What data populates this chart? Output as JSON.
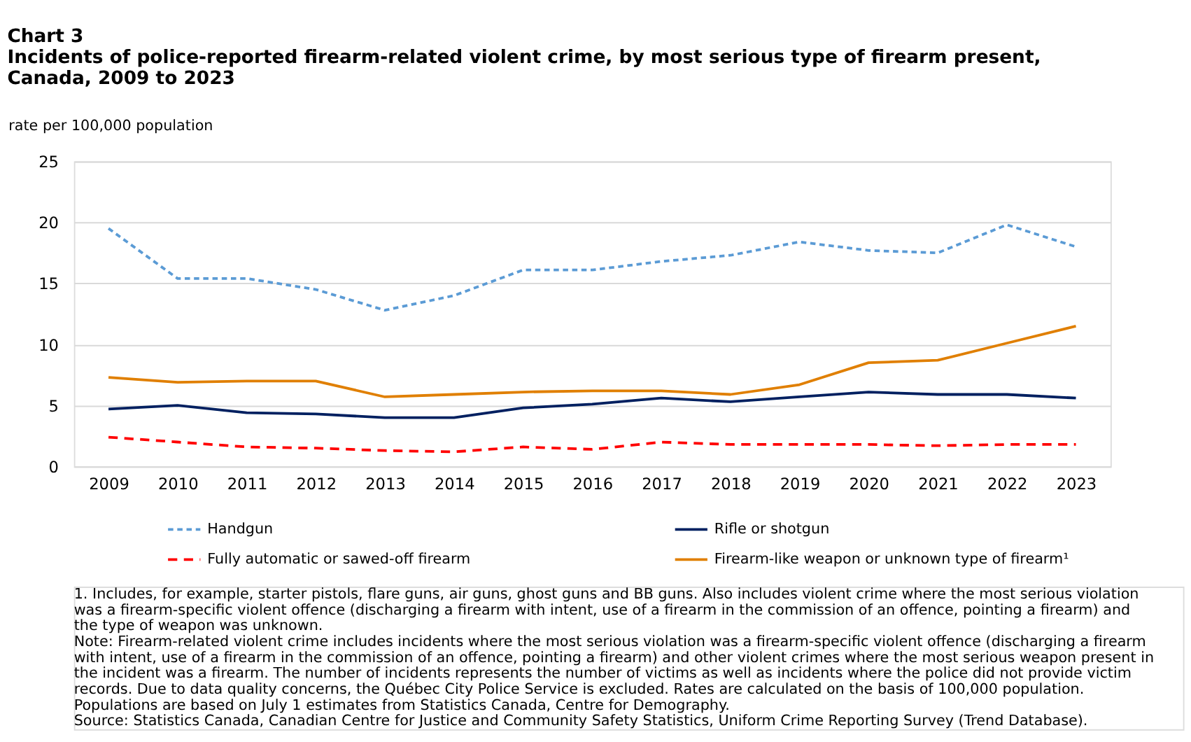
{
  "chart_data": {
    "type": "line",
    "title": "Chart 3\nIncidents of police-reported firearm-related violent crime, by most serious type of firearm present, Canada, 2009 to 2023",
    "ylabel": "rate per 100,000 population",
    "categories": [
      "2009",
      "2010",
      "2011",
      "2012",
      "2013",
      "2014",
      "2015",
      "2016",
      "2017",
      "2018",
      "2019",
      "2020",
      "2021",
      "2022",
      "2023"
    ],
    "series": [
      {
        "name": "Handgun",
        "color": "#5b9bd5",
        "line_style": "dotted",
        "values": [
          19.5,
          15.4,
          15.4,
          14.5,
          12.8,
          14.0,
          16.1,
          16.1,
          16.8,
          17.3,
          18.4,
          17.7,
          17.5,
          19.8,
          18.0
        ]
      },
      {
        "name": "Rifle or shotgun",
        "color": "#002060",
        "line_style": "solid",
        "values": [
          4.7,
          5.0,
          4.4,
          4.3,
          4.0,
          4.0,
          4.8,
          5.1,
          5.6,
          5.3,
          5.7,
          6.1,
          5.9,
          5.9,
          5.6
        ]
      },
      {
        "name": "Fully automatic or sawed-off firearm",
        "color": "#ff0000",
        "line_style": "dashed",
        "values": [
          2.4,
          2.0,
          1.6,
          1.5,
          1.3,
          1.2,
          1.6,
          1.4,
          2.0,
          1.8,
          1.8,
          1.8,
          1.7,
          1.8,
          1.8
        ]
      },
      {
        "name": "Firearm-like weapon or unknown type of firearm¹",
        "color": "#e07f00",
        "line_style": "solid",
        "values": [
          7.3,
          6.9,
          7.0,
          7.0,
          5.7,
          5.9,
          6.1,
          6.2,
          6.2,
          5.9,
          6.7,
          8.5,
          8.7,
          10.1,
          11.5
        ]
      }
    ],
    "ylim": [
      0,
      25
    ],
    "yticks": [
      0,
      5,
      10,
      15,
      20,
      25
    ],
    "grid": "y",
    "legend": "bottom",
    "marker": "none",
    "annotations": [
      "1. Includes, for example, starter pistols, flare guns, air guns, ghost guns and BB guns. Also includes violent crime where the most serious violation was a firearm-specific violent offence (discharging a firearm with intent, use of a firearm in the commission of an offence, pointing a firearm) and the type of weapon was unknown.",
      "Note: Firearm-related violent crime includes incidents where the most serious violation was a firearm-specific violent offence (discharging a firearm with intent, use of a firearm in the commission of an offence, pointing a firearm) and other violent crimes where the most serious weapon present in the incident was a firearm. The number of incidents represents the number of victims as well as incidents where the police did not provide victim records. Due to data quality concerns, the Québec City Police Service is excluded. Rates are calculated on the basis of 100,000 population. Populations are based on July 1 estimates from Statistics Canada, Centre for Demography.",
      "Source: Statistics Canada, Canadian Centre for Justice and Community Safety Statistics, Uniform Crime Reporting Survey (Trend Database)."
    ]
  }
}
